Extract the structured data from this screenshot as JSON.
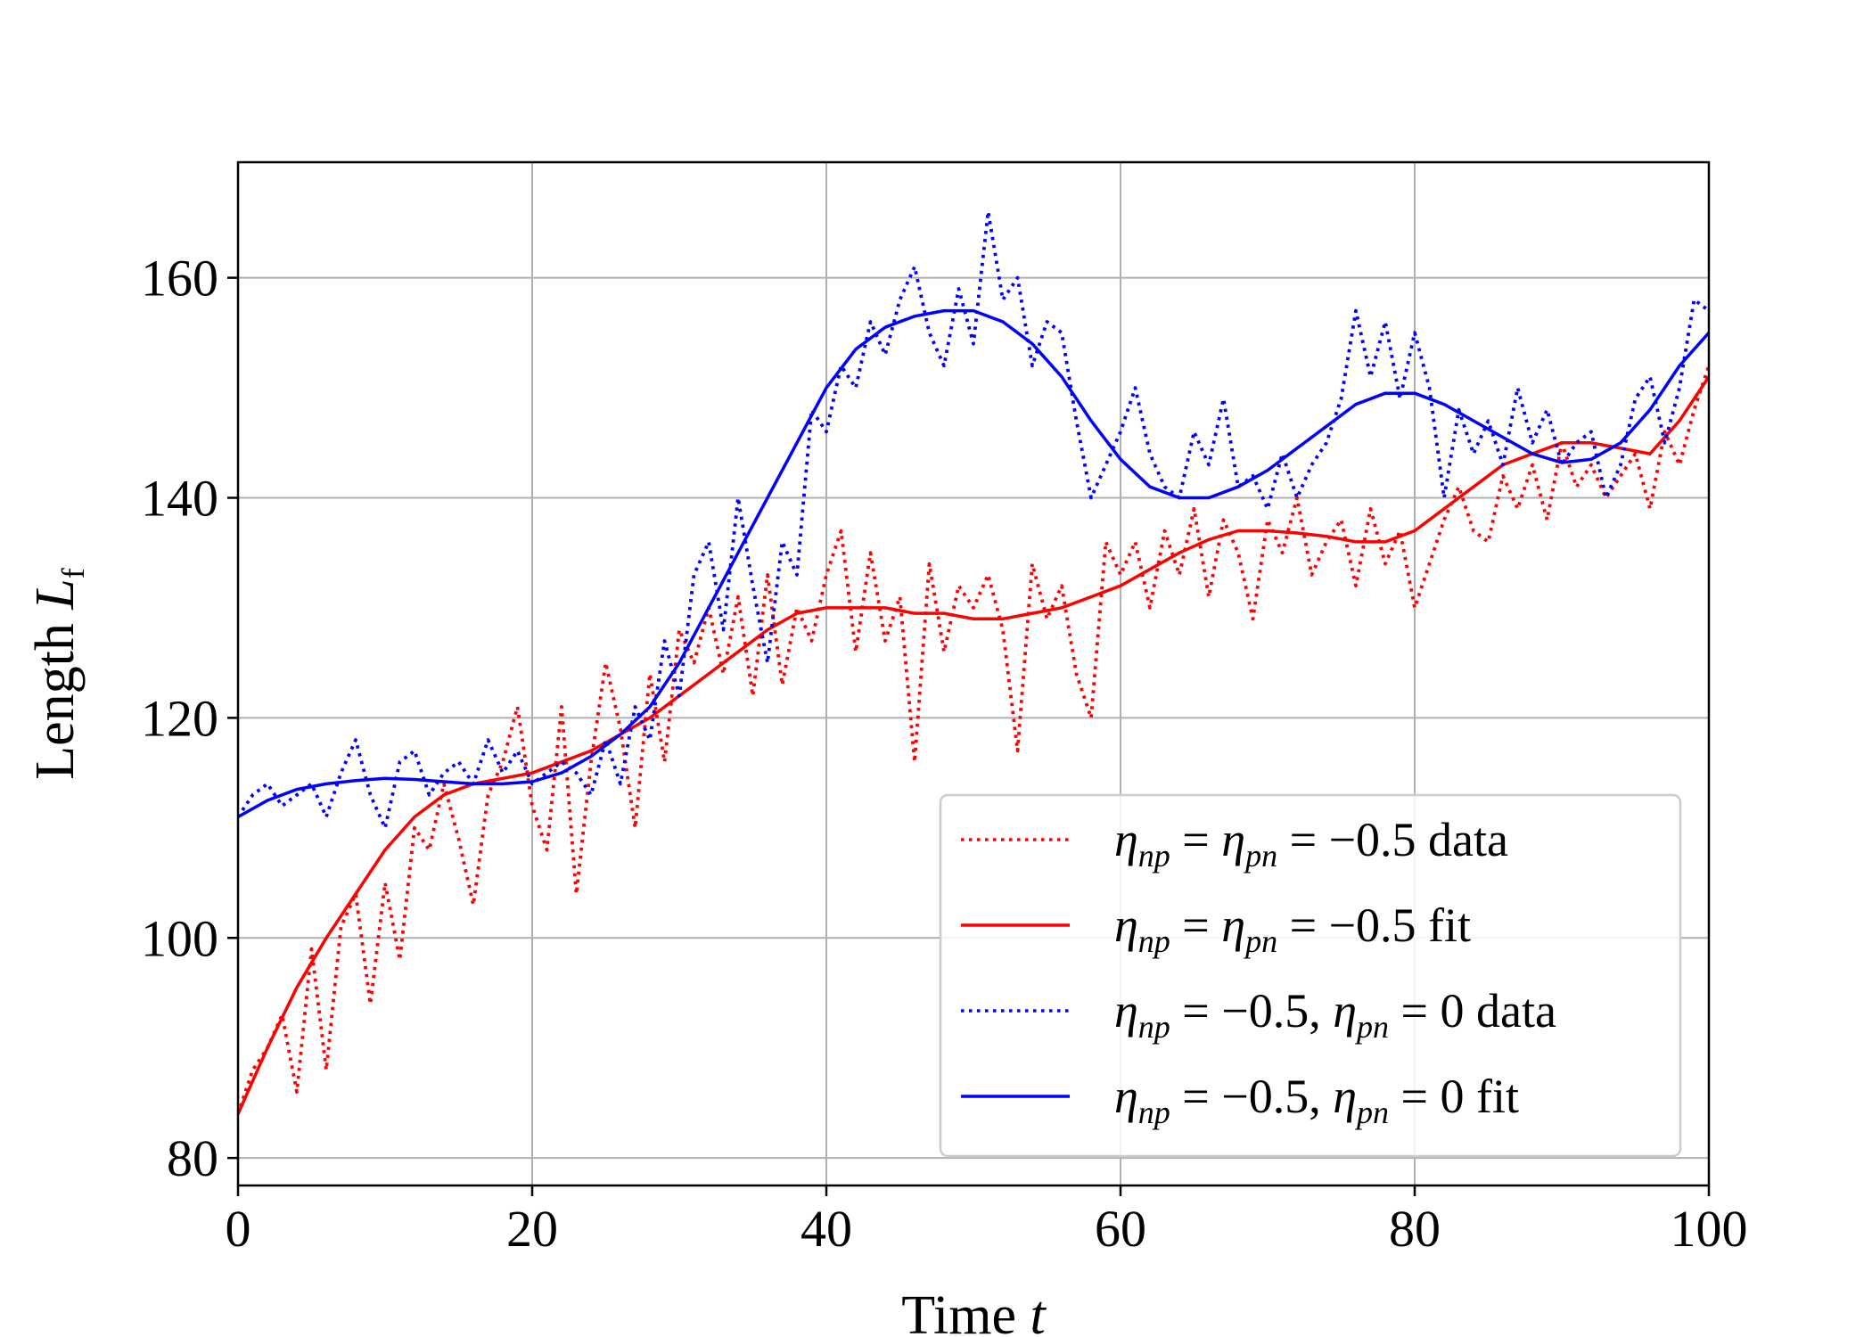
{
  "chart_data": {
    "type": "line",
    "title": "",
    "xlabel": "Time",
    "xlabel_var": "t",
    "ylabel": "Length",
    "ylabel_var": "L",
    "ylabel_sub": "f",
    "xlim": [
      0,
      100
    ],
    "ylim": [
      77.5,
      170.5
    ],
    "xticks": [
      0,
      20,
      40,
      60,
      80,
      100
    ],
    "yticks": [
      80,
      100,
      120,
      140,
      160
    ],
    "grid": true,
    "legend_position": "lower-right",
    "series": [
      {
        "name": "η_np = η_pn = −0.5 data",
        "style": "dotted",
        "color": "#ff0000",
        "label_parts": [
          "η",
          "np",
          " = η",
          "pn",
          " = −0.5 data"
        ],
        "x": [
          0,
          1,
          2,
          3,
          4,
          5,
          6,
          7,
          8,
          9,
          10,
          11,
          12,
          13,
          14,
          15,
          16,
          17,
          18,
          19,
          20,
          21,
          22,
          23,
          24,
          25,
          26,
          27,
          28,
          29,
          30,
          31,
          32,
          33,
          34,
          35,
          36,
          37,
          38,
          39,
          40,
          41,
          42,
          43,
          44,
          45,
          46,
          47,
          48,
          49,
          50,
          51,
          52,
          53,
          54,
          55,
          56,
          57,
          58,
          59,
          60,
          61,
          62,
          63,
          64,
          65,
          66,
          67,
          68,
          69,
          70,
          71,
          72,
          73,
          74,
          75,
          76,
          77,
          78,
          79,
          80,
          81,
          82,
          83,
          84,
          85,
          86,
          87,
          88,
          89,
          90,
          91,
          92,
          93,
          94,
          95,
          96,
          97,
          98,
          99,
          100
        ],
        "y": [
          84,
          88,
          90,
          93,
          86,
          99,
          88,
          101,
          104,
          94,
          105,
          98,
          110,
          108,
          114,
          109,
          103,
          113,
          116,
          121,
          112,
          108,
          121,
          104,
          116,
          125,
          119,
          110,
          124,
          116,
          128,
          125,
          130,
          124,
          131,
          122,
          133,
          123,
          130,
          127,
          133,
          137,
          126,
          135,
          127,
          131,
          116,
          134,
          126,
          132,
          130,
          133,
          128,
          117,
          134,
          129,
          132,
          124,
          120,
          136,
          133,
          136,
          130,
          137,
          133,
          139,
          131,
          138,
          135,
          129,
          138,
          135,
          140,
          133,
          136,
          138,
          132,
          139,
          134,
          137,
          130,
          134,
          138,
          141,
          137,
          136,
          142,
          139,
          143,
          138,
          145,
          141,
          143,
          140,
          142,
          144,
          139,
          146,
          143,
          148,
          152
        ]
      },
      {
        "name": "η_np = η_pn = −0.5 fit",
        "style": "solid",
        "color": "#ff0000",
        "label_parts": [
          "η",
          "np",
          " = η",
          "pn",
          " = −0.5 fit"
        ],
        "x": [
          0,
          2,
          4,
          6,
          8,
          10,
          12,
          14,
          16,
          18,
          20,
          22,
          24,
          26,
          28,
          30,
          32,
          34,
          36,
          38,
          40,
          42,
          44,
          46,
          48,
          50,
          52,
          54,
          56,
          58,
          60,
          62,
          64,
          66,
          68,
          70,
          72,
          74,
          76,
          78,
          80,
          82,
          84,
          86,
          88,
          90,
          92,
          94,
          96,
          98,
          100
        ],
        "y": [
          84,
          90,
          95.5,
          100,
          104,
          108,
          111,
          113,
          114,
          114.5,
          115,
          116,
          117,
          118.5,
          120,
          122,
          124,
          126,
          128,
          129.5,
          130,
          130,
          130,
          129.5,
          129.5,
          129,
          129,
          129.5,
          130,
          131,
          132,
          133.5,
          135,
          136.2,
          137,
          137,
          136.8,
          136.5,
          136,
          136,
          137,
          139,
          141,
          143,
          144,
          145,
          145,
          144.5,
          144,
          147,
          151
        ]
      },
      {
        "name": "η_np = −0.5, η_pn = 0 data",
        "style": "dotted",
        "color": "#0000ff",
        "label_parts": [
          "η",
          "np",
          " = −0.5, η",
          "pn",
          " = 0 data"
        ],
        "x": [
          0,
          1,
          2,
          3,
          4,
          5,
          6,
          7,
          8,
          9,
          10,
          11,
          12,
          13,
          14,
          15,
          16,
          17,
          18,
          19,
          20,
          21,
          22,
          23,
          24,
          25,
          26,
          27,
          28,
          29,
          30,
          31,
          32,
          33,
          34,
          35,
          36,
          37,
          38,
          39,
          40,
          41,
          42,
          43,
          44,
          45,
          46,
          47,
          48,
          49,
          50,
          51,
          52,
          53,
          54,
          55,
          56,
          57,
          58,
          59,
          60,
          61,
          62,
          63,
          64,
          65,
          66,
          67,
          68,
          69,
          70,
          71,
          72,
          73,
          74,
          75,
          76,
          77,
          78,
          79,
          80,
          81,
          82,
          83,
          84,
          85,
          86,
          87,
          88,
          89,
          90,
          91,
          92,
          93,
          94,
          95,
          96,
          97,
          98,
          99,
          100
        ],
        "y": [
          111,
          113,
          114,
          112,
          113,
          114,
          111,
          115,
          118,
          113,
          110,
          116,
          117,
          113,
          115,
          116,
          114,
          118,
          115,
          117,
          114,
          115,
          116,
          115,
          113,
          118,
          114,
          121,
          118,
          127,
          122,
          133,
          136,
          128,
          140,
          132,
          125,
          136,
          133,
          148,
          146,
          152,
          150,
          156,
          153,
          158,
          161,
          155,
          152,
          159,
          154,
          166,
          158,
          160,
          152,
          156,
          155,
          147,
          140,
          143,
          146,
          150,
          144,
          141,
          140,
          146,
          143,
          149,
          141,
          142,
          139,
          144,
          140,
          143,
          145,
          149,
          157,
          151,
          156,
          149,
          155,
          150,
          140,
          148,
          144,
          147,
          143,
          150,
          145,
          148,
          143,
          145,
          146,
          140,
          143,
          149,
          151,
          145,
          150,
          158,
          157
        ]
      },
      {
        "name": "η_np = −0.5, η_pn = 0 fit",
        "style": "solid",
        "color": "#0000ff",
        "label_parts": [
          "η",
          "np",
          " = −0.5, η",
          "pn",
          " = 0 fit"
        ],
        "x": [
          0,
          2,
          4,
          6,
          8,
          10,
          12,
          14,
          16,
          18,
          20,
          22,
          24,
          26,
          28,
          30,
          32,
          34,
          36,
          38,
          40,
          42,
          44,
          46,
          48,
          50,
          52,
          54,
          56,
          58,
          60,
          62,
          64,
          66,
          68,
          70,
          72,
          74,
          76,
          78,
          80,
          82,
          84,
          86,
          88,
          90,
          92,
          94,
          96,
          98,
          100
        ],
        "y": [
          111,
          112.5,
          113.5,
          114,
          114.3,
          114.5,
          114.4,
          114.2,
          114,
          114,
          114.2,
          115,
          116.5,
          118.5,
          121,
          125,
          130,
          135,
          140,
          145,
          150,
          153.5,
          155.5,
          156.5,
          157,
          157,
          156,
          154,
          151,
          147,
          143.5,
          141,
          140,
          140,
          141,
          142.5,
          144.5,
          146.5,
          148.5,
          149.5,
          149.5,
          148.5,
          147,
          145.5,
          144,
          143.2,
          143.5,
          145,
          148,
          152,
          155
        ]
      }
    ]
  }
}
